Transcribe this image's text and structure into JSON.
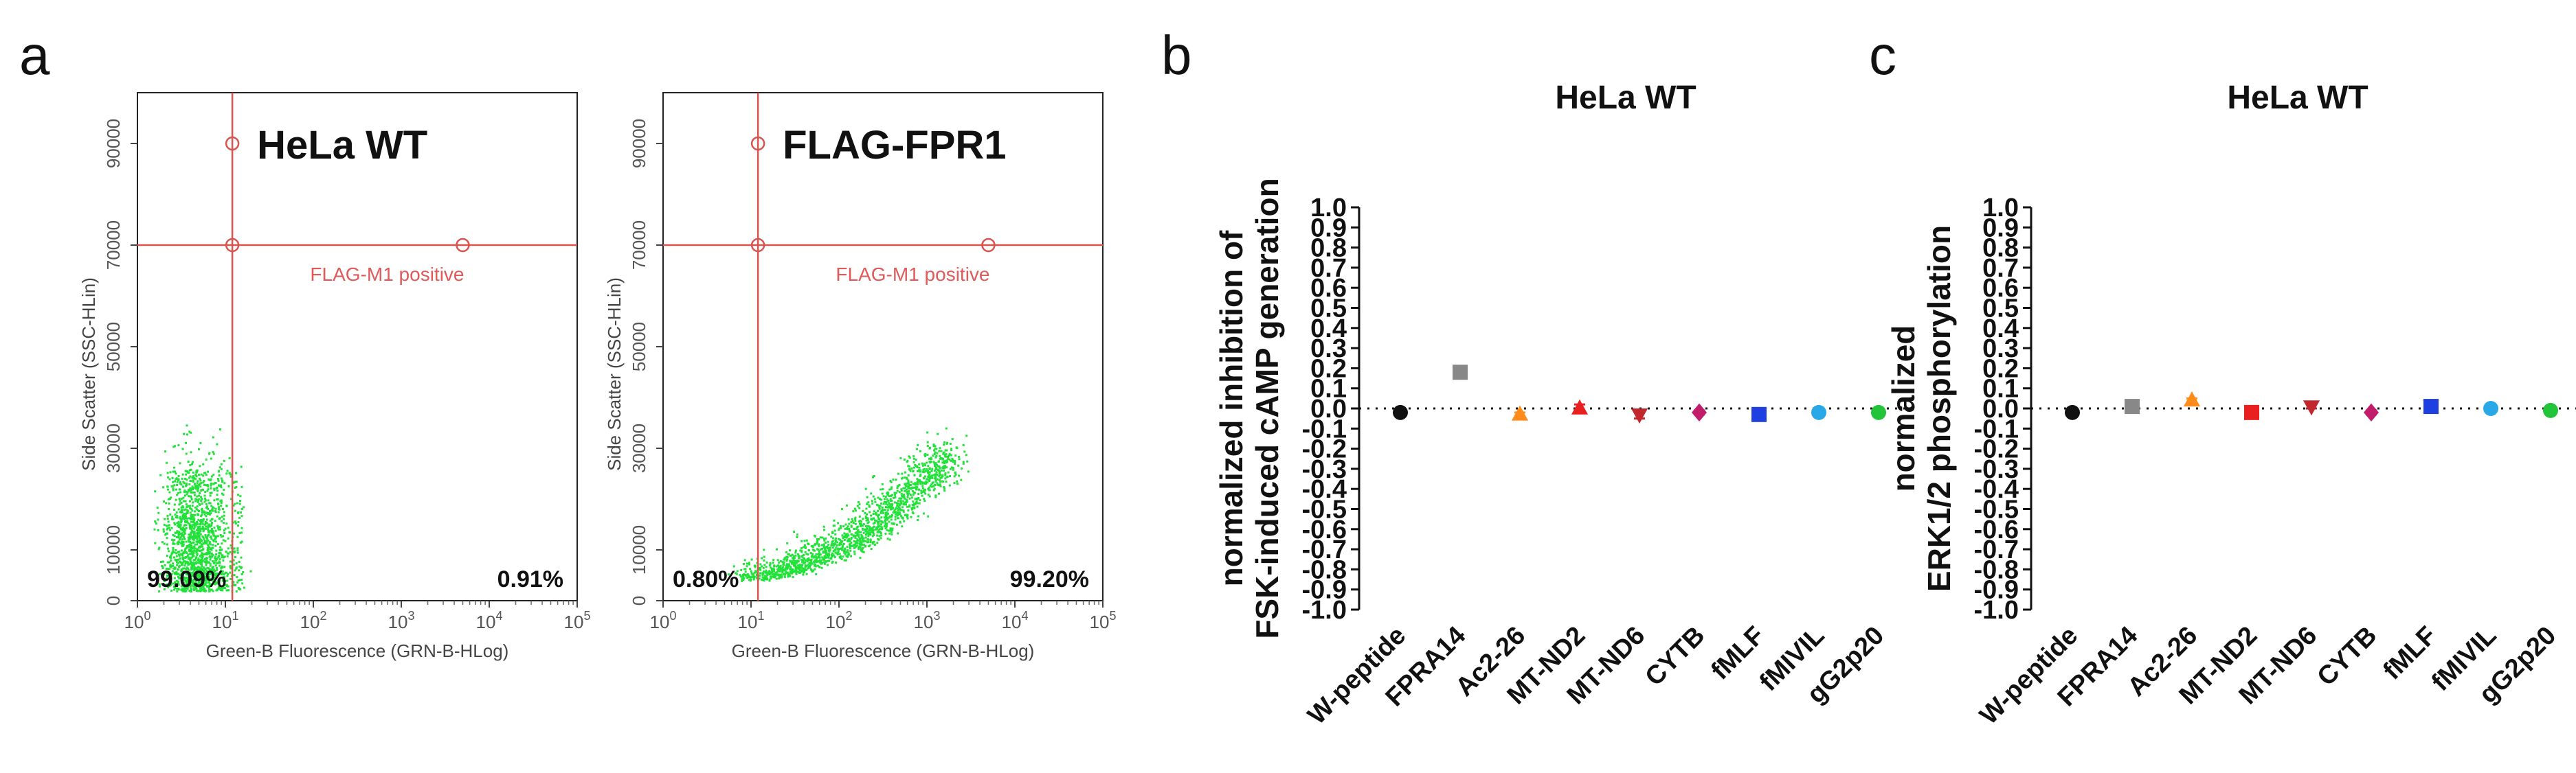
{
  "panel_labels": {
    "a": "a",
    "b": "b",
    "c": "c"
  },
  "chart_data": [
    {
      "type": "scatter",
      "subtype": "flow-cytometry-dotplot",
      "sample_label": "HeLa WT",
      "xlabel": "Green-B Fluorescence (GRN-B-HLog)",
      "ylabel": "Side Scatter (SSC-HLin)",
      "x_scale": "log",
      "xlim": [
        1,
        100000
      ],
      "ylim": [
        0,
        100000
      ],
      "x_ticks": [
        {
          "base": "10",
          "exp": "0"
        },
        {
          "base": "10",
          "exp": "1"
        },
        {
          "base": "10",
          "exp": "2"
        },
        {
          "base": "10",
          "exp": "3"
        },
        {
          "base": "10",
          "exp": "4"
        },
        {
          "base": "10",
          "exp": "5"
        }
      ],
      "y_ticks": [
        "0",
        "10000",
        "30000",
        "50000",
        "70000",
        "90000"
      ],
      "gate_label": "FLAG-M1 positive",
      "gate": {
        "x": 12,
        "y": 70000
      },
      "quadrant_percentages": {
        "negative": "99.09%",
        "positive": "0.91%"
      },
      "population": {
        "center_x_log": 0.65,
        "center_y": 10000,
        "spread_x_log": 0.22,
        "spread_y": 9000
      },
      "dot_color": "#22e23a",
      "gate_color": "#d9534f"
    },
    {
      "type": "scatter",
      "subtype": "flow-cytometry-dotplot",
      "sample_label": "FLAG-FPR1",
      "xlabel": "Green-B Fluorescence (GRN-B-HLog)",
      "ylabel": "Side Scatter (SSC-HLin)",
      "x_scale": "log",
      "xlim": [
        1,
        100000
      ],
      "ylim": [
        0,
        100000
      ],
      "x_ticks": [
        {
          "base": "10",
          "exp": "0"
        },
        {
          "base": "10",
          "exp": "1"
        },
        {
          "base": "10",
          "exp": "2"
        },
        {
          "base": "10",
          "exp": "3"
        },
        {
          "base": "10",
          "exp": "4"
        },
        {
          "base": "10",
          "exp": "5"
        }
      ],
      "y_ticks": [
        "0",
        "10000",
        "30000",
        "50000",
        "70000",
        "90000"
      ],
      "gate_label": "FLAG-M1 positive",
      "gate": {
        "x": 12,
        "y": 70000
      },
      "quadrant_percentages": {
        "negative": "0.80%",
        "positive": "99.20%"
      },
      "population": {
        "center_x_log": 2.3,
        "center_y": 9000,
        "spread_x_log": 0.55,
        "spread_y": 6000
      },
      "dot_color": "#22e23a",
      "gate_color": "#d9534f"
    },
    {
      "type": "scatter",
      "title": "HeLa WT",
      "ylabel_lines": [
        "normalized inhibition of",
        "FSK-induced cAMP generation"
      ],
      "ylim": [
        -1.0,
        1.0
      ],
      "y_ticks": [
        "1.0",
        "0.9",
        "0.8",
        "0.7",
        "0.6",
        "0.5",
        "0.4",
        "0.3",
        "0.2",
        "0.1",
        "0.0",
        "-0.1",
        "-0.2",
        "-0.3",
        "-0.4",
        "-0.5",
        "-0.6",
        "-0.7",
        "-0.8",
        "-0.9",
        "-1.0"
      ],
      "categories": [
        "W-peptide",
        "FPRA14",
        "Ac2-26",
        "MT-ND2",
        "MT-ND6",
        "CYTB",
        "fMLF",
        "fMIVIL",
        "gG2p20"
      ],
      "values": [
        -0.02,
        0.18,
        -0.03,
        0.0,
        -0.03,
        -0.02,
        -0.03,
        -0.02,
        -0.02
      ],
      "errors": [
        0.01,
        0.03,
        0.01,
        0.02,
        0.02,
        0.01,
        0.01,
        0.01,
        0.01
      ],
      "markers": [
        "circle",
        "square",
        "triangle-up",
        "triangle-up",
        "triangle-down",
        "diamond",
        "square",
        "circle",
        "circle"
      ],
      "colors": [
        "#111111",
        "#888888",
        "#ff8c1a",
        "#e8201f",
        "#c1272d",
        "#c21d6b",
        "#1f3fe0",
        "#29a8e8",
        "#22c43a"
      ],
      "baseline": 0.0
    },
    {
      "type": "scatter",
      "title": "HeLa WT",
      "ylabel_lines": [
        "normalized",
        "ERK1/2 phosphorylation"
      ],
      "ylim": [
        -1.0,
        1.0
      ],
      "y_ticks": [
        "1.0",
        "0.9",
        "0.8",
        "0.7",
        "0.6",
        "0.5",
        "0.4",
        "0.3",
        "0.2",
        "0.1",
        "0.0",
        "-0.1",
        "-0.2",
        "-0.3",
        "-0.4",
        "-0.5",
        "-0.6",
        "-0.7",
        "-0.8",
        "-0.9",
        "-1.0"
      ],
      "categories": [
        "W-peptide",
        "FPRA14",
        "Ac2-26",
        "MT-ND2",
        "MT-ND6",
        "CYTB",
        "fMLF",
        "fMIVIL",
        "gG2p20"
      ],
      "values": [
        -0.02,
        0.01,
        0.04,
        -0.02,
        0.01,
        -0.02,
        0.01,
        0.0,
        -0.01
      ],
      "errors": [
        0.01,
        0.01,
        0.01,
        0.01,
        0.01,
        0.01,
        0.01,
        0.01,
        0.01
      ],
      "markers": [
        "circle",
        "square",
        "triangle-up",
        "square",
        "triangle-down",
        "diamond",
        "square",
        "circle",
        "circle"
      ],
      "colors": [
        "#111111",
        "#888888",
        "#ff8c1a",
        "#e8201f",
        "#c1272d",
        "#c21d6b",
        "#1f3fe0",
        "#29a8e8",
        "#22c43a"
      ],
      "baseline": 0.0
    }
  ]
}
